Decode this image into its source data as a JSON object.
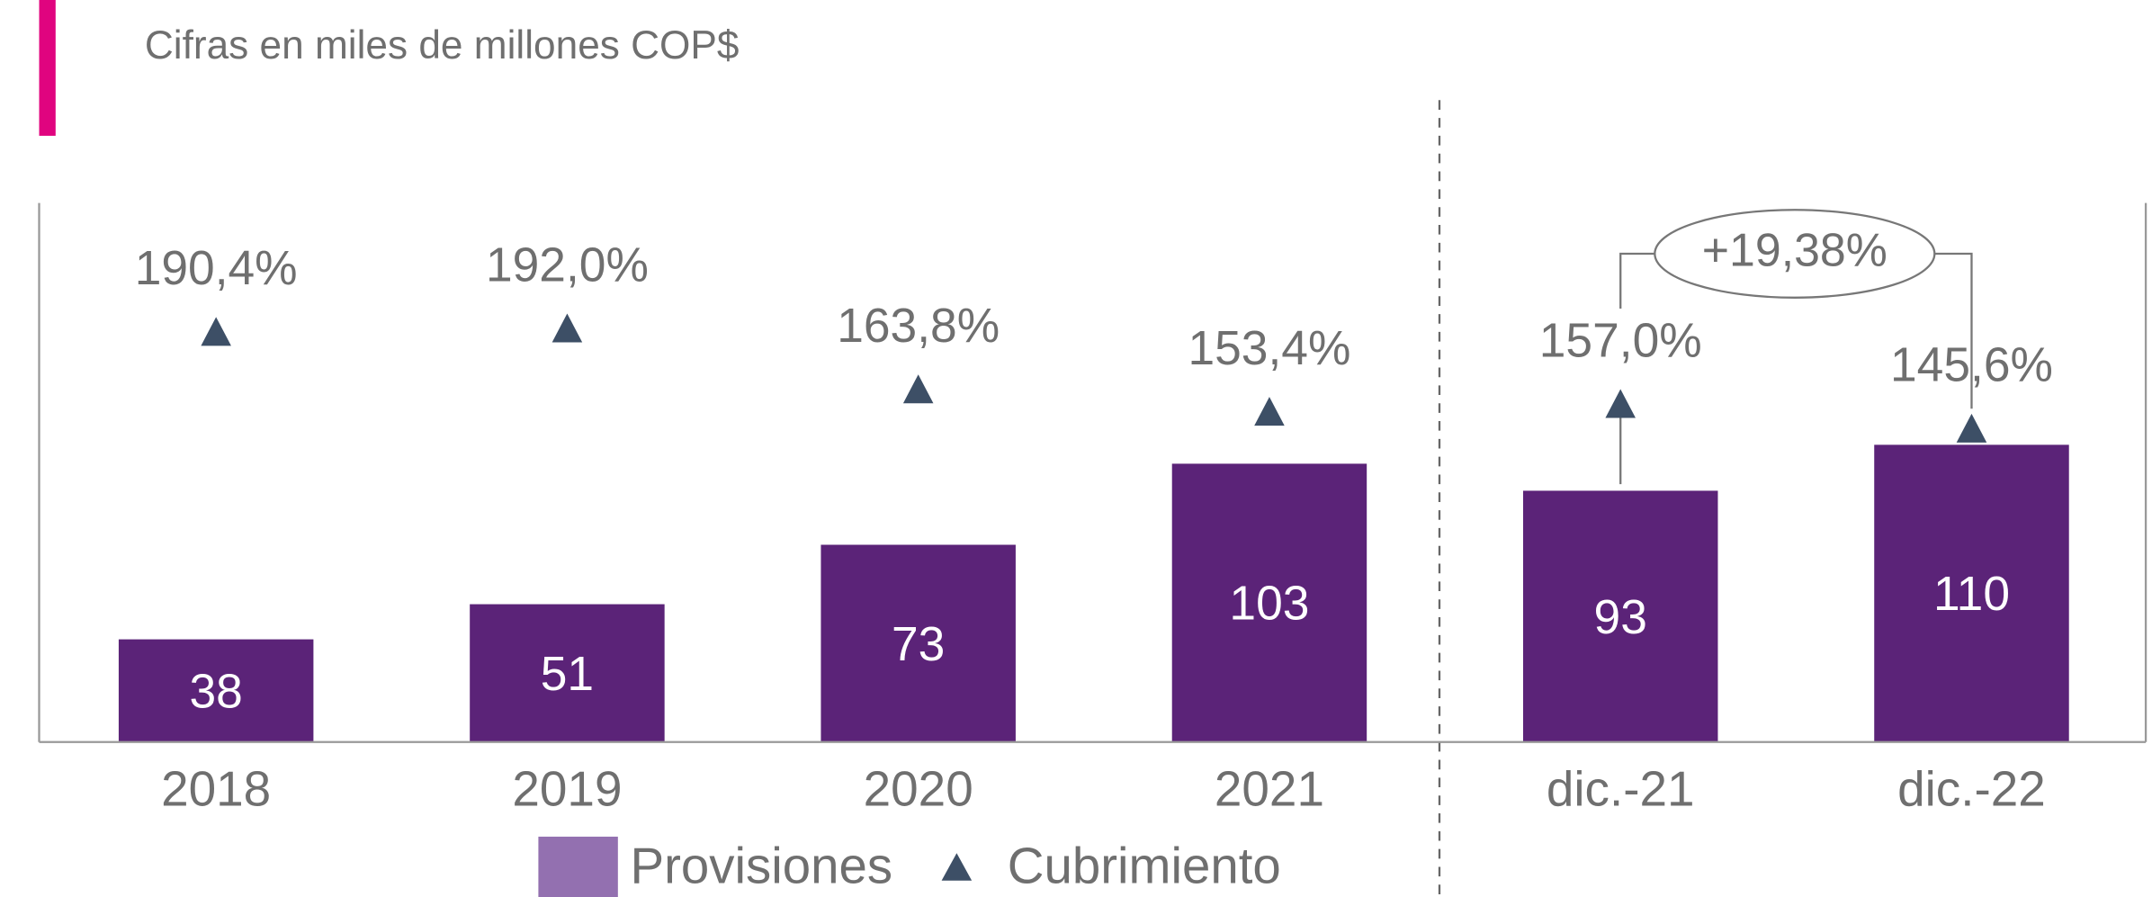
{
  "chart_data": {
    "type": "bar",
    "subtitle": "Cifras en miles de millones COP$",
    "categories": [
      "2018",
      "2019",
      "2020",
      "2021",
      "dic.-21",
      "dic.-22"
    ],
    "series": [
      {
        "name": "Provisiones",
        "type": "bar",
        "color": "#5b2378",
        "legend_color": "#9370b0",
        "values": [
          38,
          51,
          73,
          103,
          93,
          110
        ]
      },
      {
        "name": "Cubrimiento",
        "type": "triangle",
        "color": "#3d4f66",
        "values": [
          190.4,
          192.0,
          163.8,
          153.4,
          157.0,
          145.6
        ],
        "value_labels": [
          "190,4%",
          "192,0%",
          "163,8%",
          "153,4%",
          "157,0%",
          "145,6%"
        ]
      }
    ],
    "annotation": "+19,38%"
  }
}
